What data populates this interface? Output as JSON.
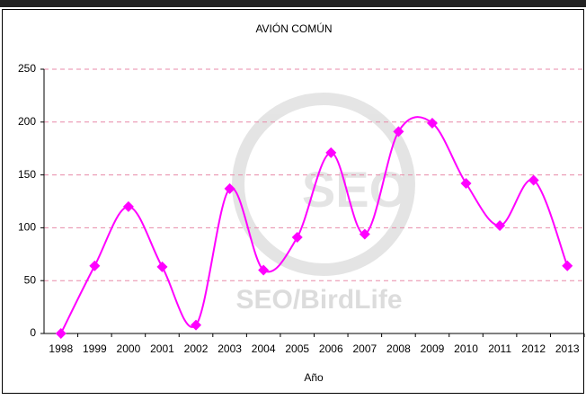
{
  "chart_data": {
    "type": "line",
    "title": "AVIÓN COMÚN",
    "x_label": "Año",
    "watermark": [
      "SEO",
      "SEO/BirdLife"
    ],
    "categories": [
      "1998",
      "1999",
      "2000",
      "2001",
      "2002",
      "2003",
      "2004",
      "2005",
      "2006",
      "2007",
      "2008",
      "2009",
      "2010",
      "2011",
      "2012",
      "2013"
    ],
    "series": [
      {
        "name": "Avión común",
        "color": "#ff00ff",
        "values": [
          0,
          64,
          120,
          63,
          8,
          137,
          60,
          91,
          171,
          94,
          191,
          199,
          142,
          102,
          145,
          64
        ]
      }
    ],
    "ylim": [
      0,
      250
    ],
    "yticks": [
      0,
      50,
      100,
      150,
      200,
      250
    ],
    "grid": true,
    "smooth": true
  }
}
